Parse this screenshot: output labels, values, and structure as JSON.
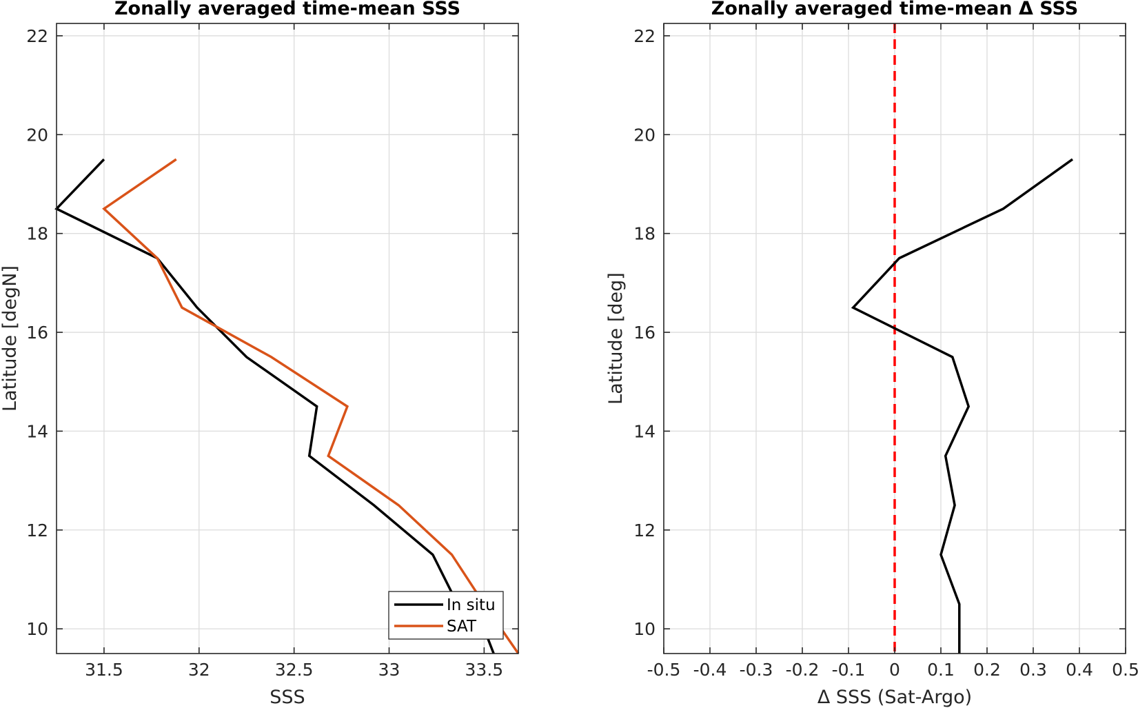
{
  "chart_data": [
    {
      "type": "line",
      "title": "Zonally averaged time-mean SSS",
      "xlabel": "SSS",
      "ylabel": "Latitude [degN]",
      "xlim": [
        31.25,
        33.68
      ],
      "ylim": [
        9.5,
        22.25
      ],
      "xticks": [
        31.5,
        32,
        32.5,
        33,
        33.5
      ],
      "xtick_labels": [
        "31.5",
        "32",
        "32.5",
        "33",
        "33.5"
      ],
      "yticks": [
        10,
        12,
        14,
        16,
        18,
        20,
        22
      ],
      "ytick_labels": [
        "10",
        "12",
        "14",
        "16",
        "18",
        "20",
        "22"
      ],
      "grid": true,
      "legend": {
        "position": "bottom-right",
        "entries": [
          "In situ",
          "SAT"
        ]
      },
      "series": [
        {
          "name": "In situ",
          "color": "#000000",
          "points": [
            [
              33.55,
              9.5
            ],
            [
              33.5,
              10.0
            ],
            [
              33.36,
              10.5
            ],
            [
              33.23,
              11.5
            ],
            [
              32.92,
              12.5
            ],
            [
              32.58,
              13.5
            ],
            [
              32.62,
              14.5
            ],
            [
              32.25,
              15.5
            ],
            [
              31.99,
              16.5
            ],
            [
              31.78,
              17.5
            ],
            [
              31.25,
              18.5
            ],
            [
              31.5,
              19.5
            ]
          ]
        },
        {
          "name": "SAT",
          "color": "#D95319",
          "points": [
            [
              33.68,
              9.5
            ],
            [
              33.5,
              10.5
            ],
            [
              33.33,
              11.5
            ],
            [
              33.05,
              12.5
            ],
            [
              32.68,
              13.5
            ],
            [
              32.78,
              14.5
            ],
            [
              32.38,
              15.5
            ],
            [
              31.91,
              16.5
            ],
            [
              31.78,
              17.5
            ],
            [
              31.5,
              18.5
            ],
            [
              31.88,
              19.5
            ]
          ]
        }
      ]
    },
    {
      "type": "line",
      "title": "Zonally averaged time-mean Δ SSS",
      "xlabel": "Δ SSS (Sat-Argo)",
      "ylabel": "Latitude [deg]",
      "xlim": [
        -0.5,
        0.5
      ],
      "ylim": [
        9.5,
        22.25
      ],
      "xticks": [
        -0.5,
        -0.4,
        -0.3,
        -0.2,
        -0.1,
        0,
        0.1,
        0.2,
        0.3,
        0.4,
        0.5
      ],
      "xtick_labels": [
        "-0.5",
        "-0.4",
        "-0.3",
        "-0.2",
        "-0.1",
        "0",
        "0.1",
        "0.2",
        "0.3",
        "0.4",
        "0.5"
      ],
      "yticks": [
        10,
        12,
        14,
        16,
        18,
        20,
        22
      ],
      "ytick_labels": [
        "10",
        "12",
        "14",
        "16",
        "18",
        "20",
        "22"
      ],
      "grid": true,
      "reference_line": {
        "x": 0,
        "color": "#FF0000",
        "style": "dashed"
      },
      "series": [
        {
          "color": "#000000",
          "points": [
            [
              0.14,
              9.5
            ],
            [
              0.14,
              10.5
            ],
            [
              0.1,
              11.5
            ],
            [
              0.13,
              12.5
            ],
            [
              0.11,
              13.5
            ],
            [
              0.16,
              14.5
            ],
            [
              0.125,
              15.5
            ],
            [
              -0.09,
              16.5
            ],
            [
              0.01,
              17.5
            ],
            [
              0.235,
              18.5
            ],
            [
              0.385,
              19.5
            ]
          ]
        }
      ]
    }
  ]
}
